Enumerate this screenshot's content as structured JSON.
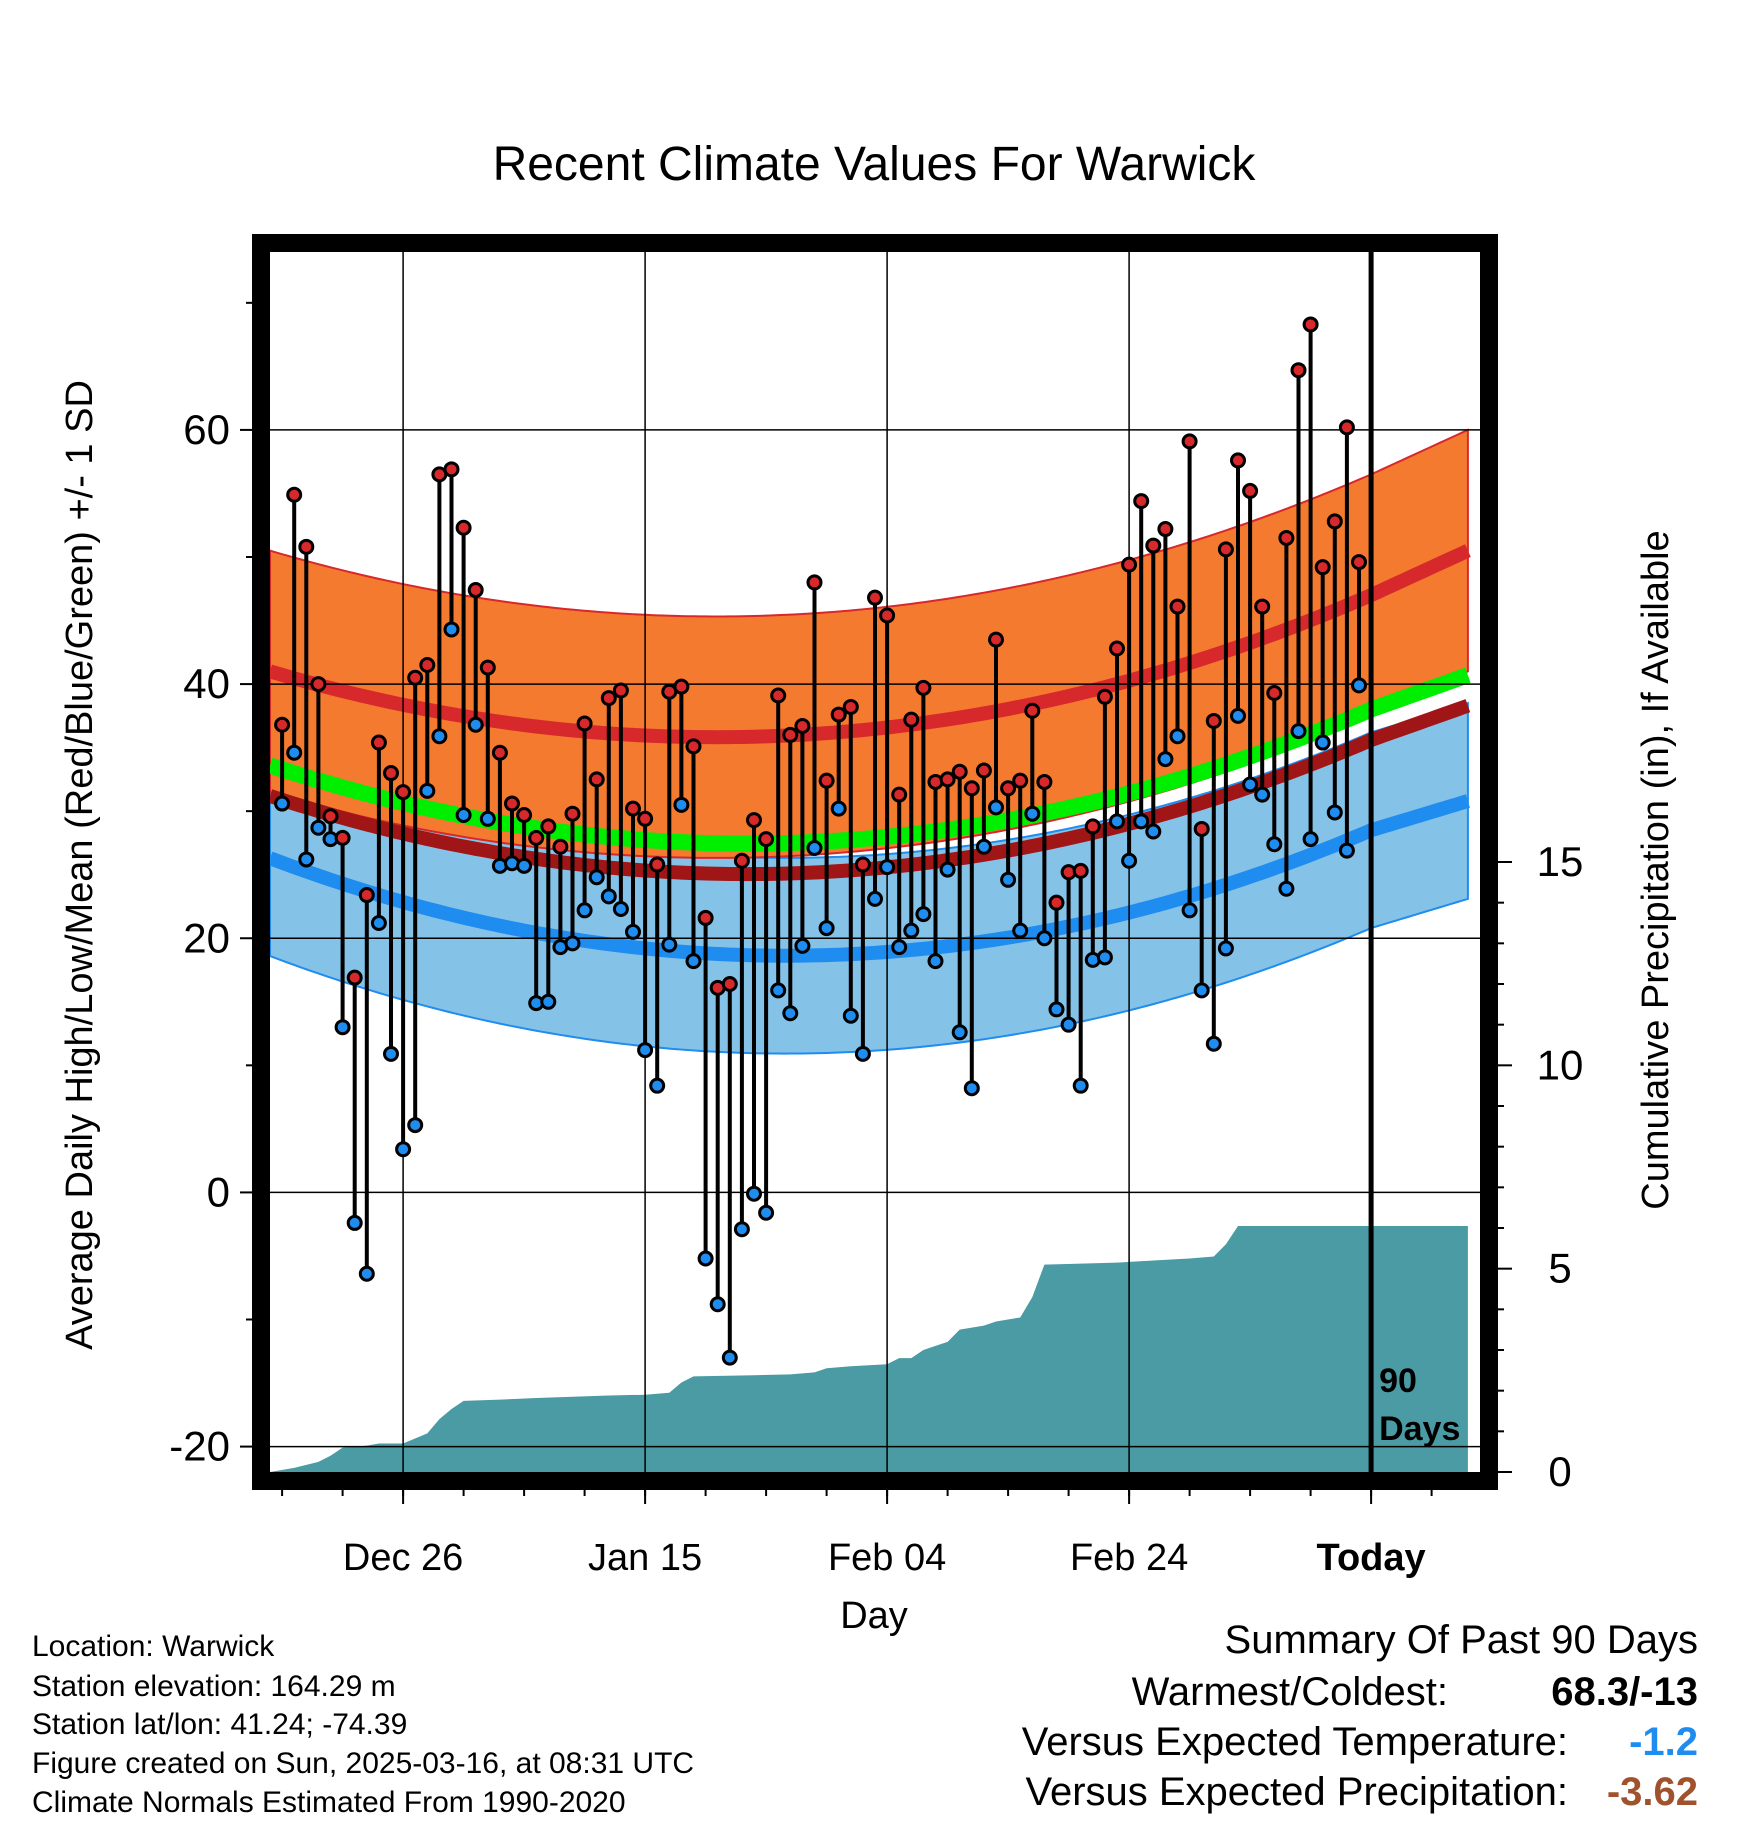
{
  "colors": {
    "high_band": "#f47a30",
    "high_mean": "#d7282c",
    "low_band": "#85c2e8",
    "low_mean": "#1f8cf0",
    "mean_line": "#00ee00",
    "prev_mean_line": "#a01515",
    "precip": "#4a9ba3",
    "warm_value": "#000000",
    "temp_anomaly": "#1f8cf0",
    "precip_anomaly": "#a0522d"
  },
  "chart_data": {
    "type": "line",
    "title": "Recent Climate Values For Warwick",
    "xlabel": "Day",
    "ylabel": "Average Daily High/Low/Mean (Red/Blue/Green) +/- 1 SD",
    "y2label": "Cumulative Precipitation (in), If Available",
    "ylim": [
      -22,
      74
    ],
    "y2lim": [
      0,
      30
    ],
    "x_tick_labels": [
      "Dec 26",
      "Jan 15",
      "Feb 04",
      "Feb 24",
      "Today"
    ],
    "x_tick_days": [
      11,
      31,
      51,
      71,
      91
    ],
    "x_range_days": [
      0,
      100
    ],
    "y_ticks": [
      -20,
      0,
      20,
      40,
      60
    ],
    "y2_ticks": [
      0,
      5,
      10,
      15
    ],
    "today_day": 91,
    "today_label": [
      "90",
      "Days"
    ],
    "grid": true,
    "normals": {
      "high_mean": {
        "day0": 41,
        "day30": 36,
        "day91": 47,
        "day99": 50.5
      },
      "high_sd": 9.5,
      "low_mean": {
        "day0": 26.3,
        "day30": 19.3,
        "day91": 28.5,
        "day99": 30.8
      },
      "low_sd": 7.7,
      "mean_line": {
        "day0": 33.6,
        "day30": 27.8,
        "day91": 38,
        "day99": 40.7
      }
    },
    "daily_high": [
      36.8,
      54.9,
      50.8,
      40.0,
      29.6,
      27.9,
      16.9,
      23.4,
      35.4,
      33.0,
      31.5,
      40.5,
      41.5,
      56.5,
      56.9,
      52.3,
      47.4,
      41.3,
      34.6,
      30.6,
      29.7,
      27.9,
      28.8,
      27.2,
      29.8,
      36.9,
      32.5,
      38.9,
      39.5,
      30.2,
      29.4,
      25.8,
      39.4,
      39.8,
      35.1,
      21.6,
      16.1,
      16.4,
      26.1,
      29.3,
      27.8,
      39.1,
      36.0,
      36.7,
      48.0,
      32.4,
      37.6,
      38.2,
      25.8,
      46.8,
      45.4,
      31.3,
      37.2,
      39.7,
      32.3,
      32.5,
      33.1,
      31.8,
      33.2,
      43.5,
      31.8,
      32.4,
      37.9,
      32.3,
      22.8,
      25.2,
      25.3,
      28.8,
      39.0,
      42.8,
      49.4,
      54.4,
      50.9,
      52.2,
      46.1,
      59.1,
      28.6,
      37.1,
      50.6,
      57.6,
      55.2,
      46.1,
      39.3,
      51.5,
      64.7,
      68.3,
      49.2,
      52.8,
      60.2,
      49.6
    ],
    "daily_low": [
      30.6,
      34.6,
      26.2,
      28.7,
      27.8,
      13.0,
      -2.4,
      -6.4,
      21.2,
      10.9,
      3.4,
      5.3,
      31.6,
      35.9,
      44.3,
      29.7,
      36.8,
      29.4,
      25.7,
      25.9,
      25.7,
      14.9,
      15.0,
      19.3,
      19.6,
      22.2,
      24.8,
      23.3,
      22.3,
      20.5,
      11.2,
      8.4,
      19.5,
      30.5,
      18.2,
      -5.2,
      -8.8,
      -13.0,
      -2.9,
      -0.1,
      -1.6,
      15.9,
      14.1,
      19.4,
      27.1,
      20.8,
      30.2,
      13.9,
      10.9,
      23.1,
      25.6,
      19.3,
      20.6,
      21.9,
      18.2,
      25.4,
      12.6,
      8.2,
      27.2,
      30.3,
      24.6,
      20.6,
      29.8,
      20.0,
      14.4,
      13.2,
      8.4,
      18.3,
      18.5,
      29.2,
      26.1,
      29.2,
      28.4,
      34.1,
      35.9,
      22.2,
      15.9,
      11.7,
      19.2,
      37.5,
      32.1,
      31.3,
      27.4,
      23.9,
      36.3,
      27.8,
      35.4,
      29.9,
      26.9,
      39.9
    ],
    "cumulative_precip": [
      [
        0,
        0
      ],
      [
        2,
        0.1
      ],
      [
        4,
        0.25
      ],
      [
        5,
        0.4
      ],
      [
        6,
        0.6
      ],
      [
        8,
        0.65
      ],
      [
        9,
        0.7
      ],
      [
        11,
        0.7
      ],
      [
        13,
        0.95
      ],
      [
        14,
        1.3
      ],
      [
        15,
        1.55
      ],
      [
        16,
        1.75
      ],
      [
        19,
        1.78
      ],
      [
        22,
        1.82
      ],
      [
        25,
        1.85
      ],
      [
        28,
        1.88
      ],
      [
        31,
        1.9
      ],
      [
        33,
        1.95
      ],
      [
        34,
        2.2
      ],
      [
        35,
        2.35
      ],
      [
        40,
        2.38
      ],
      [
        43,
        2.4
      ],
      [
        45,
        2.45
      ],
      [
        46,
        2.55
      ],
      [
        48,
        2.6
      ],
      [
        51,
        2.65
      ],
      [
        52,
        2.8
      ],
      [
        53,
        2.8
      ],
      [
        54,
        3.0
      ],
      [
        55,
        3.1
      ],
      [
        56,
        3.2
      ],
      [
        57,
        3.5
      ],
      [
        58,
        3.55
      ],
      [
        59,
        3.6
      ],
      [
        60,
        3.7
      ],
      [
        62,
        3.8
      ],
      [
        63,
        4.3
      ],
      [
        64,
        5.1
      ],
      [
        70,
        5.15
      ],
      [
        73,
        5.2
      ],
      [
        76,
        5.25
      ],
      [
        78,
        5.3
      ],
      [
        79,
        5.6
      ],
      [
        80,
        6.05
      ],
      [
        91,
        6.05
      ],
      [
        99,
        6.05
      ]
    ]
  },
  "footer": {
    "location": "Location: Warwick",
    "elevation": "Station elevation: 164.29 m",
    "latlon": "Station lat/lon: 41.24; -74.39",
    "created": "Figure created on Sun, 2025-03-16, at 08:31 UTC",
    "normals": "Climate Normals Estimated From 1990-2020"
  },
  "summary": {
    "title": "Summary Of Past 90 Days",
    "warm_label": "Warmest/Coldest:",
    "warm_value": "68.3/-13",
    "temp_label": "Versus Expected Temperature:",
    "temp_value": "-1.2",
    "precip_label": "Versus Expected Precipitation:",
    "precip_value": "-3.62"
  }
}
